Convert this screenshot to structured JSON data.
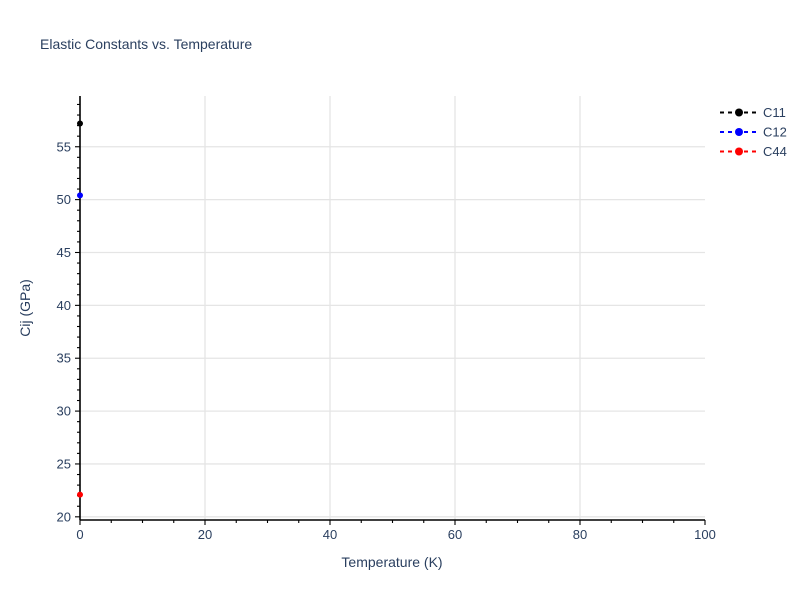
{
  "chart_data": {
    "type": "scatter",
    "title": "Elastic Constants vs. Temperature",
    "xlabel": "Temperature (K)",
    "ylabel": "Cij (GPa)",
    "xlim": [
      0,
      100
    ],
    "ylim": [
      19.7,
      59.8
    ],
    "xticks": [
      0,
      20,
      40,
      60,
      80,
      100
    ],
    "yticks": [
      20,
      25,
      30,
      35,
      40,
      45,
      50,
      55
    ],
    "x_minor_step": 5,
    "y_minor_step": 1,
    "grid": true,
    "legend_position": "outside-top-right",
    "marker": "circle",
    "line_style": "dashed",
    "series": [
      {
        "name": "C11",
        "color": "#000000",
        "x": [
          0
        ],
        "y": [
          57.2
        ]
      },
      {
        "name": "C12",
        "color": "#0000ff",
        "x": [
          0
        ],
        "y": [
          50.4
        ]
      },
      {
        "name": "C44",
        "color": "#ff0000",
        "x": [
          0
        ],
        "y": [
          22.1
        ]
      }
    ],
    "colors": {
      "text": "#2a3f5f",
      "grid": "#e5e5e5",
      "axis": "#000000",
      "background": "#ffffff"
    }
  }
}
